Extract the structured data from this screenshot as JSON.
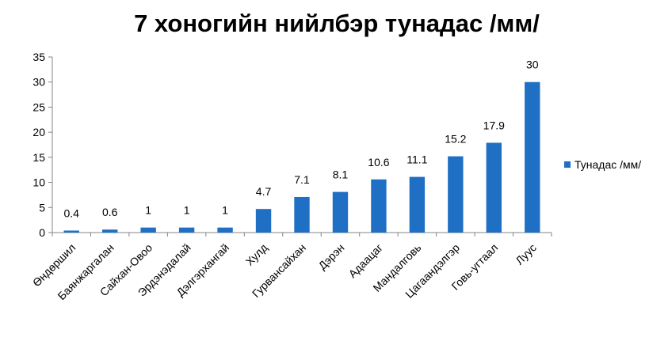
{
  "chart_data": {
    "type": "bar",
    "title": "7 хоногийн нийлбэр тунадас /мм/",
    "xlabel": "",
    "ylabel": "",
    "ylim": [
      0,
      35
    ],
    "yticks": [
      0,
      5,
      10,
      15,
      20,
      25,
      30,
      35
    ],
    "grid": false,
    "legend_position": "right",
    "bar_color": "#1F6FC5",
    "categories": [
      "Өндөршил",
      "Баянжаргалан",
      "Сайхан-Овоо",
      "Эрдэнэдалай",
      "Дэлгэрхангай",
      "Хулд",
      "Гурвансайхан",
      "Дэрэн",
      "Адаацаг",
      "Мандалговь",
      "Цагаандэлгэр",
      "Говь-угтаал",
      "Луус"
    ],
    "series": [
      {
        "name": "Тунадас /мм/",
        "values": [
          0.4,
          0.6,
          1,
          1,
          1,
          4.7,
          7.1,
          8.1,
          10.6,
          11.1,
          15.2,
          17.9,
          30
        ],
        "labels": [
          "0.4",
          "0.6",
          "1",
          "1",
          "1",
          "4.7",
          "7.1",
          "8.1",
          "10.6",
          "11.1",
          "15.2",
          "17.9",
          "30"
        ]
      }
    ]
  }
}
